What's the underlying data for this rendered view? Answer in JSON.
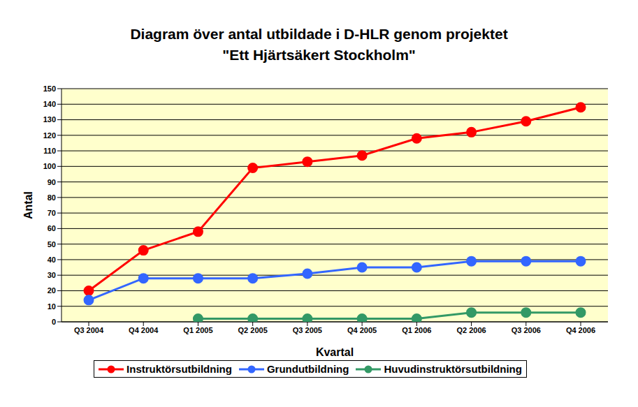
{
  "chart_data": {
    "type": "line",
    "title": [
      "Diagram över antal utbildade i D-HLR genom projektet",
      "\"Ett Hjärtsäkert Stockholm\""
    ],
    "x_label": "Kvartal",
    "y_label": "Antal",
    "categories": [
      "Q3 2004",
      "Q4 2004",
      "Q1 2005",
      "Q2 2005",
      "Q3 2005",
      "Q4 2005",
      "Q1 2006",
      "Q2 2006",
      "Q3 2006",
      "Q4 2006"
    ],
    "series": [
      {
        "name": "Instruktörsutbildning",
        "color": "#ff0000",
        "marker": "circle",
        "values": [
          20,
          46,
          58,
          99,
          103,
          107,
          118,
          122,
          129,
          138
        ]
      },
      {
        "name": "Grundutbildning",
        "color": "#3366ff",
        "marker": "circle",
        "values": [
          14,
          28,
          28,
          28,
          31,
          35,
          35,
          39,
          39,
          39
        ]
      },
      {
        "name": "Huvudinstruktörsutbildning",
        "color": "#339966",
        "marker": "circle",
        "values": [
          null,
          null,
          2,
          2,
          2,
          2,
          2,
          6,
          6,
          6
        ]
      }
    ],
    "ylim": [
      0,
      150
    ],
    "yticks": [
      0,
      10,
      20,
      30,
      40,
      50,
      60,
      70,
      80,
      90,
      100,
      110,
      120,
      130,
      140,
      150
    ],
    "grid": true,
    "legend": "bottom"
  }
}
